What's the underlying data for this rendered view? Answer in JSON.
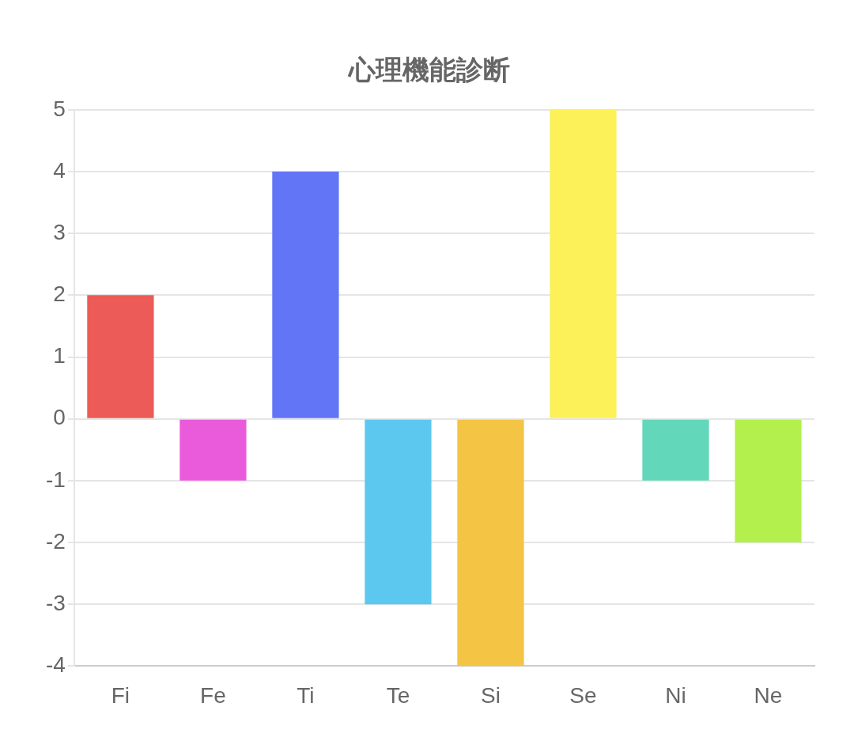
{
  "chart_data": {
    "type": "bar",
    "title": "心理機能診断",
    "categories": [
      "Fi",
      "Fe",
      "Ti",
      "Te",
      "Si",
      "Se",
      "Ni",
      "Ne"
    ],
    "values": [
      2,
      -1,
      4,
      -3,
      -4,
      5,
      -1,
      -2
    ],
    "colors": [
      "#ec5b57",
      "#ea5bdc",
      "#6275f7",
      "#5cc8f0",
      "#f4c445",
      "#fcf159",
      "#63d7b9",
      "#b3f04e"
    ],
    "ylim": [
      -4,
      5
    ],
    "yticks": [
      -4,
      -3,
      -2,
      -1,
      0,
      1,
      2,
      3,
      4,
      5
    ],
    "grid": "y",
    "legend": false
  }
}
